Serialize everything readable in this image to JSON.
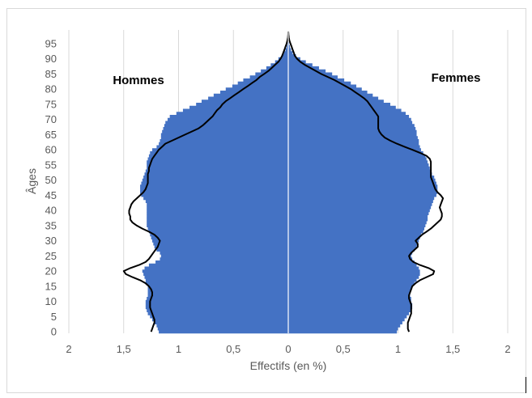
{
  "chart_data": {
    "type": "bar",
    "orientation": "horizontal-pyramid",
    "xlabel": "Effectifs (en %)",
    "ylabel": "Âges",
    "x_ticks": [
      "2",
      "1,5",
      "1",
      "0,5",
      "0",
      "0,5",
      "1",
      "1,5",
      "2"
    ],
    "y_ticks": [
      "0",
      "5",
      "10",
      "15",
      "20",
      "25",
      "30",
      "35",
      "40",
      "45",
      "50",
      "55",
      "60",
      "65",
      "70",
      "75",
      "80",
      "85",
      "90",
      "95"
    ],
    "xlim": [
      -2,
      2
    ],
    "ylim": [
      0,
      99
    ],
    "grid": "vertical",
    "bar_color": "#4472c4",
    "line_color": "#000000",
    "ages": [
      0,
      1,
      2,
      3,
      4,
      5,
      6,
      7,
      8,
      9,
      10,
      11,
      12,
      13,
      14,
      15,
      16,
      17,
      18,
      19,
      20,
      21,
      22,
      23,
      24,
      25,
      26,
      27,
      28,
      29,
      30,
      31,
      32,
      33,
      34,
      35,
      36,
      37,
      38,
      39,
      40,
      41,
      42,
      43,
      44,
      45,
      46,
      47,
      48,
      49,
      50,
      51,
      52,
      53,
      54,
      55,
      56,
      57,
      58,
      59,
      60,
      61,
      62,
      63,
      64,
      65,
      66,
      67,
      68,
      69,
      70,
      71,
      72,
      73,
      74,
      75,
      76,
      77,
      78,
      79,
      80,
      81,
      82,
      83,
      84,
      85,
      86,
      87,
      88,
      89,
      90,
      91,
      92,
      93,
      94,
      95,
      96,
      97,
      98,
      99
    ],
    "series": [
      {
        "name": "Hommes",
        "role": "bars",
        "values": [
          1.18,
          1.19,
          1.2,
          1.22,
          1.24,
          1.26,
          1.28,
          1.29,
          1.3,
          1.3,
          1.3,
          1.29,
          1.28,
          1.28,
          1.28,
          1.28,
          1.3,
          1.3,
          1.31,
          1.32,
          1.33,
          1.31,
          1.27,
          1.21,
          1.17,
          1.16,
          1.17,
          1.2,
          1.22,
          1.23,
          1.24,
          1.25,
          1.26,
          1.27,
          1.28,
          1.29,
          1.29,
          1.29,
          1.29,
          1.29,
          1.29,
          1.29,
          1.29,
          1.3,
          1.32,
          1.34,
          1.35,
          1.35,
          1.35,
          1.34,
          1.33,
          1.32,
          1.31,
          1.3,
          1.29,
          1.29,
          1.29,
          1.28,
          1.27,
          1.26,
          1.24,
          1.2,
          1.18,
          1.17,
          1.16,
          1.16,
          1.15,
          1.14,
          1.13,
          1.12,
          1.1,
          1.08,
          1.02,
          0.96,
          0.9,
          0.84,
          0.79,
          0.73,
          0.68,
          0.62,
          0.57,
          0.51,
          0.46,
          0.41,
          0.35,
          0.3,
          0.25,
          0.2,
          0.16,
          0.12,
          0.09,
          0.06,
          0.04,
          0.025,
          0.015,
          0.008,
          0.004,
          0.002,
          0.001,
          0.0
        ]
      },
      {
        "name": "Femmes",
        "role": "bars",
        "values": [
          0.99,
          1.0,
          1.02,
          1.04,
          1.06,
          1.08,
          1.1,
          1.12,
          1.13,
          1.13,
          1.12,
          1.12,
          1.11,
          1.11,
          1.12,
          1.13,
          1.15,
          1.17,
          1.19,
          1.2,
          1.2,
          1.19,
          1.17,
          1.15,
          1.13,
          1.12,
          1.13,
          1.15,
          1.17,
          1.18,
          1.19,
          1.2,
          1.21,
          1.23,
          1.24,
          1.25,
          1.26,
          1.27,
          1.27,
          1.28,
          1.29,
          1.3,
          1.31,
          1.32,
          1.33,
          1.35,
          1.36,
          1.36,
          1.36,
          1.35,
          1.34,
          1.33,
          1.31,
          1.3,
          1.29,
          1.28,
          1.27,
          1.26,
          1.25,
          1.23,
          1.21,
          1.2,
          1.19,
          1.19,
          1.18,
          1.17,
          1.17,
          1.16,
          1.15,
          1.13,
          1.12,
          1.1,
          1.07,
          1.03,
          0.98,
          0.93,
          0.87,
          0.82,
          0.77,
          0.72,
          0.67,
          0.62,
          0.57,
          0.51,
          0.45,
          0.4,
          0.34,
          0.28,
          0.22,
          0.16,
          0.11,
          0.07,
          0.04,
          0.025,
          0.015,
          0.008,
          0.004,
          0.002,
          0.001,
          0.0
        ]
      },
      {
        "name": "Hommes",
        "role": "line",
        "values": [
          1.25,
          1.24,
          1.23,
          1.22,
          1.22,
          1.23,
          1.24,
          1.25,
          1.26,
          1.26,
          1.26,
          1.25,
          1.24,
          1.24,
          1.25,
          1.27,
          1.3,
          1.35,
          1.42,
          1.48,
          1.5,
          1.44,
          1.36,
          1.3,
          1.27,
          1.25,
          1.23,
          1.21,
          1.19,
          1.18,
          1.17,
          1.19,
          1.22,
          1.27,
          1.33,
          1.38,
          1.42,
          1.44,
          1.44,
          1.45,
          1.45,
          1.44,
          1.43,
          1.41,
          1.38,
          1.35,
          1.32,
          1.3,
          1.29,
          1.28,
          1.28,
          1.28,
          1.28,
          1.27,
          1.27,
          1.26,
          1.25,
          1.24,
          1.22,
          1.2,
          1.18,
          1.15,
          1.12,
          1.06,
          1.0,
          0.94,
          0.88,
          0.82,
          0.78,
          0.75,
          0.72,
          0.69,
          0.67,
          0.65,
          0.62,
          0.6,
          0.57,
          0.53,
          0.49,
          0.45,
          0.41,
          0.37,
          0.33,
          0.29,
          0.26,
          0.22,
          0.18,
          0.15,
          0.12,
          0.09,
          0.07,
          0.055,
          0.045,
          0.035,
          0.025,
          0.015,
          0.008,
          0.003,
          0.001,
          0.0
        ]
      },
      {
        "name": "Femmes",
        "role": "line",
        "values": [
          1.1,
          1.09,
          1.09,
          1.09,
          1.1,
          1.11,
          1.12,
          1.12,
          1.12,
          1.12,
          1.11,
          1.1,
          1.1,
          1.11,
          1.12,
          1.13,
          1.16,
          1.2,
          1.26,
          1.32,
          1.33,
          1.28,
          1.2,
          1.14,
          1.11,
          1.1,
          1.12,
          1.15,
          1.18,
          1.18,
          1.16,
          1.19,
          1.22,
          1.26,
          1.3,
          1.33,
          1.36,
          1.39,
          1.4,
          1.4,
          1.39,
          1.38,
          1.39,
          1.4,
          1.41,
          1.39,
          1.36,
          1.34,
          1.33,
          1.32,
          1.31,
          1.3,
          1.3,
          1.3,
          1.3,
          1.3,
          1.3,
          1.29,
          1.26,
          1.2,
          1.13,
          1.06,
          0.99,
          0.93,
          0.88,
          0.85,
          0.83,
          0.82,
          0.82,
          0.82,
          0.82,
          0.82,
          0.8,
          0.78,
          0.76,
          0.74,
          0.72,
          0.69,
          0.65,
          0.61,
          0.57,
          0.52,
          0.47,
          0.42,
          0.36,
          0.3,
          0.25,
          0.2,
          0.15,
          0.11,
          0.08,
          0.06,
          0.05,
          0.04,
          0.03,
          0.02,
          0.01,
          0.005,
          0.002,
          0.0
        ]
      }
    ],
    "side_labels": {
      "left": "Hommes",
      "right": "Femmes"
    }
  }
}
